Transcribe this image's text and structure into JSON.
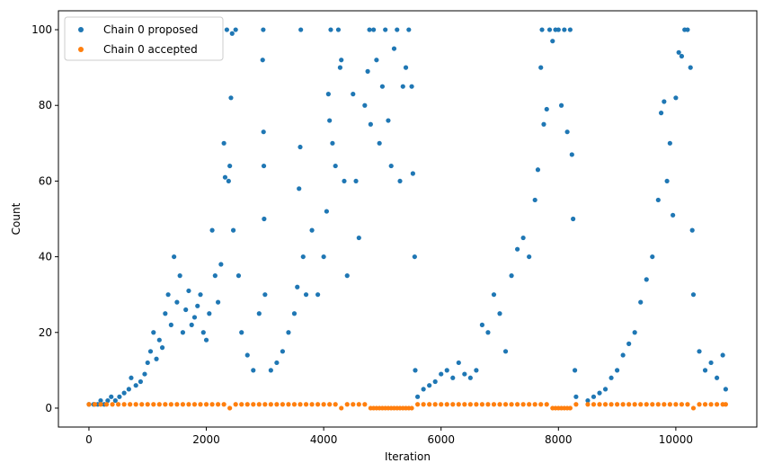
{
  "chart_data": {
    "type": "scatter",
    "title": "",
    "xlabel": "Iteration",
    "ylabel": "Count",
    "xlim": [
      -520,
      11380
    ],
    "ylim": [
      -5,
      105
    ],
    "x_ticks": [
      0,
      2000,
      4000,
      6000,
      8000,
      10000
    ],
    "y_ticks": [
      0,
      20,
      40,
      60,
      80,
      100
    ],
    "grid": false,
    "legend": {
      "position": "top-left"
    },
    "series": [
      {
        "name": "Chain 0 proposed",
        "color": "#1f77b4",
        "description_points": "dense scatter; sampled representative points",
        "points": [
          [
            0,
            1
          ],
          [
            80,
            1
          ],
          [
            150,
            1
          ],
          [
            200,
            2
          ],
          [
            260,
            1
          ],
          [
            320,
            2
          ],
          [
            380,
            3
          ],
          [
            450,
            2
          ],
          [
            520,
            3
          ],
          [
            600,
            4
          ],
          [
            680,
            5
          ],
          [
            720,
            8
          ],
          [
            800,
            6
          ],
          [
            880,
            7
          ],
          [
            950,
            9
          ],
          [
            1000,
            12
          ],
          [
            1050,
            15
          ],
          [
            1100,
            20
          ],
          [
            1150,
            13
          ],
          [
            1200,
            18
          ],
          [
            1250,
            16
          ],
          [
            1300,
            25
          ],
          [
            1350,
            30
          ],
          [
            1400,
            22
          ],
          [
            1450,
            40
          ],
          [
            1500,
            28
          ],
          [
            1550,
            35
          ],
          [
            1600,
            20
          ],
          [
            1650,
            26
          ],
          [
            1700,
            31
          ],
          [
            1750,
            22
          ],
          [
            1800,
            24
          ],
          [
            1850,
            27
          ],
          [
            1900,
            30
          ],
          [
            1950,
            20
          ],
          [
            2000,
            18
          ],
          [
            2050,
            25
          ],
          [
            2100,
            47
          ],
          [
            2150,
            35
          ],
          [
            2200,
            28
          ],
          [
            2250,
            38
          ],
          [
            2300,
            70
          ],
          [
            2320,
            61
          ],
          [
            2350,
            100
          ],
          [
            2380,
            60
          ],
          [
            2400,
            64
          ],
          [
            2420,
            82
          ],
          [
            2440,
            99
          ],
          [
            2460,
            47
          ],
          [
            2500,
            100
          ],
          [
            2550,
            35
          ],
          [
            2600,
            20
          ],
          [
            2700,
            14
          ],
          [
            2800,
            10
          ],
          [
            2900,
            25
          ],
          [
            2960,
            92
          ],
          [
            2970,
            100
          ],
          [
            2975,
            73
          ],
          [
            2980,
            64
          ],
          [
            2985,
            50
          ],
          [
            3000,
            30
          ],
          [
            3100,
            10
          ],
          [
            3200,
            12
          ],
          [
            3300,
            15
          ],
          [
            3400,
            20
          ],
          [
            3500,
            25
          ],
          [
            3550,
            32
          ],
          [
            3580,
            58
          ],
          [
            3600,
            69
          ],
          [
            3610,
            100
          ],
          [
            3650,
            40
          ],
          [
            3700,
            30
          ],
          [
            3800,
            47
          ],
          [
            3900,
            30
          ],
          [
            4000,
            40
          ],
          [
            4050,
            52
          ],
          [
            4080,
            83
          ],
          [
            4100,
            76
          ],
          [
            4120,
            100
          ],
          [
            4150,
            70
          ],
          [
            4200,
            64
          ],
          [
            4250,
            100
          ],
          [
            4280,
            90
          ],
          [
            4300,
            92
          ],
          [
            4350,
            60
          ],
          [
            4400,
            35
          ],
          [
            4500,
            83
          ],
          [
            4550,
            60
          ],
          [
            4600,
            45
          ],
          [
            4700,
            80
          ],
          [
            4750,
            89
          ],
          [
            4780,
            100
          ],
          [
            4800,
            75
          ],
          [
            4850,
            100
          ],
          [
            4900,
            92
          ],
          [
            4950,
            70
          ],
          [
            5000,
            85
          ],
          [
            5050,
            100
          ],
          [
            5100,
            76
          ],
          [
            5150,
            64
          ],
          [
            5200,
            95
          ],
          [
            5250,
            100
          ],
          [
            5300,
            60
          ],
          [
            5350,
            85
          ],
          [
            5400,
            90
          ],
          [
            5450,
            100
          ],
          [
            5500,
            85
          ],
          [
            5520,
            62
          ],
          [
            5550,
            40
          ],
          [
            5560,
            10
          ],
          [
            5600,
            3
          ],
          [
            5700,
            5
          ],
          [
            5800,
            6
          ],
          [
            5900,
            7
          ],
          [
            6000,
            9
          ],
          [
            6100,
            10
          ],
          [
            6200,
            8
          ],
          [
            6300,
            12
          ],
          [
            6400,
            9
          ],
          [
            6500,
            8
          ],
          [
            6600,
            10
          ],
          [
            6700,
            22
          ],
          [
            6800,
            20
          ],
          [
            6900,
            30
          ],
          [
            7000,
            25
          ],
          [
            7100,
            15
          ],
          [
            7200,
            35
          ],
          [
            7300,
            42
          ],
          [
            7400,
            45
          ],
          [
            7500,
            40
          ],
          [
            7600,
            55
          ],
          [
            7650,
            63
          ],
          [
            7700,
            90
          ],
          [
            7720,
            100
          ],
          [
            7750,
            75
          ],
          [
            7800,
            79
          ],
          [
            7850,
            100
          ],
          [
            7900,
            97
          ],
          [
            7950,
            100
          ],
          [
            8000,
            100
          ],
          [
            8050,
            80
          ],
          [
            8100,
            100
          ],
          [
            8150,
            73
          ],
          [
            8200,
            100
          ],
          [
            8230,
            67
          ],
          [
            8250,
            50
          ],
          [
            8280,
            10
          ],
          [
            8300,
            3
          ],
          [
            8500,
            2
          ],
          [
            8600,
            3
          ],
          [
            8700,
            4
          ],
          [
            8800,
            5
          ],
          [
            8900,
            8
          ],
          [
            9000,
            10
          ],
          [
            9100,
            14
          ],
          [
            9200,
            17
          ],
          [
            9300,
            20
          ],
          [
            9400,
            28
          ],
          [
            9500,
            34
          ],
          [
            9600,
            40
          ],
          [
            9700,
            55
          ],
          [
            9750,
            78
          ],
          [
            9800,
            81
          ],
          [
            9850,
            60
          ],
          [
            9900,
            70
          ],
          [
            9950,
            51
          ],
          [
            10000,
            82
          ],
          [
            10050,
            94
          ],
          [
            10100,
            93
          ],
          [
            10150,
            100
          ],
          [
            10200,
            100
          ],
          [
            10250,
            90
          ],
          [
            10280,
            47
          ],
          [
            10300,
            30
          ],
          [
            10400,
            15
          ],
          [
            10500,
            10
          ],
          [
            10600,
            12
          ],
          [
            10700,
            8
          ],
          [
            10800,
            14
          ],
          [
            10850,
            5
          ]
        ]
      },
      {
        "name": "Chain 0 accepted",
        "color": "#ff7f0e",
        "description_points": "nearly all at value 1",
        "points": [
          [
            0,
            1
          ],
          [
            100,
            1
          ],
          [
            200,
            1
          ],
          [
            300,
            1
          ],
          [
            400,
            1
          ],
          [
            500,
            1
          ],
          [
            600,
            1
          ],
          [
            700,
            1
          ],
          [
            800,
            1
          ],
          [
            900,
            1
          ],
          [
            1000,
            1
          ],
          [
            1100,
            1
          ],
          [
            1200,
            1
          ],
          [
            1300,
            1
          ],
          [
            1400,
            1
          ],
          [
            1500,
            1
          ],
          [
            1600,
            1
          ],
          [
            1700,
            1
          ],
          [
            1800,
            1
          ],
          [
            1900,
            1
          ],
          [
            2000,
            1
          ],
          [
            2100,
            1
          ],
          [
            2200,
            1
          ],
          [
            2300,
            1
          ],
          [
            2400,
            0
          ],
          [
            2500,
            1
          ],
          [
            2600,
            1
          ],
          [
            2700,
            1
          ],
          [
            2800,
            1
          ],
          [
            2900,
            1
          ],
          [
            3000,
            1
          ],
          [
            3100,
            1
          ],
          [
            3200,
            1
          ],
          [
            3300,
            1
          ],
          [
            3400,
            1
          ],
          [
            3500,
            1
          ],
          [
            3600,
            1
          ],
          [
            3700,
            1
          ],
          [
            3800,
            1
          ],
          [
            3900,
            1
          ],
          [
            4000,
            1
          ],
          [
            4100,
            1
          ],
          [
            4200,
            1
          ],
          [
            4300,
            0
          ],
          [
            4400,
            1
          ],
          [
            4500,
            1
          ],
          [
            4600,
            1
          ],
          [
            4700,
            1
          ],
          [
            4800,
            0
          ],
          [
            4850,
            0
          ],
          [
            4900,
            0
          ],
          [
            4950,
            0
          ],
          [
            5000,
            0
          ],
          [
            5050,
            0
          ],
          [
            5100,
            0
          ],
          [
            5150,
            0
          ],
          [
            5200,
            0
          ],
          [
            5250,
            0
          ],
          [
            5300,
            0
          ],
          [
            5350,
            0
          ],
          [
            5400,
            0
          ],
          [
            5450,
            0
          ],
          [
            5500,
            0
          ],
          [
            5600,
            1
          ],
          [
            5700,
            1
          ],
          [
            5800,
            1
          ],
          [
            5900,
            1
          ],
          [
            6000,
            1
          ],
          [
            6100,
            1
          ],
          [
            6200,
            1
          ],
          [
            6300,
            1
          ],
          [
            6400,
            1
          ],
          [
            6500,
            1
          ],
          [
            6600,
            1
          ],
          [
            6700,
            1
          ],
          [
            6800,
            1
          ],
          [
            6900,
            1
          ],
          [
            7000,
            1
          ],
          [
            7100,
            1
          ],
          [
            7200,
            1
          ],
          [
            7300,
            1
          ],
          [
            7400,
            1
          ],
          [
            7500,
            1
          ],
          [
            7600,
            1
          ],
          [
            7700,
            1
          ],
          [
            7800,
            1
          ],
          [
            7900,
            0
          ],
          [
            7950,
            0
          ],
          [
            8000,
            0
          ],
          [
            8050,
            0
          ],
          [
            8100,
            0
          ],
          [
            8150,
            0
          ],
          [
            8200,
            0
          ],
          [
            8300,
            1
          ],
          [
            8500,
            1
          ],
          [
            8600,
            1
          ],
          [
            8700,
            1
          ],
          [
            8800,
            1
          ],
          [
            8900,
            1
          ],
          [
            9000,
            1
          ],
          [
            9100,
            1
          ],
          [
            9200,
            1
          ],
          [
            9300,
            1
          ],
          [
            9400,
            1
          ],
          [
            9500,
            1
          ],
          [
            9600,
            1
          ],
          [
            9700,
            1
          ],
          [
            9800,
            1
          ],
          [
            9900,
            1
          ],
          [
            10000,
            1
          ],
          [
            10100,
            1
          ],
          [
            10200,
            1
          ],
          [
            10300,
            0
          ],
          [
            10400,
            1
          ],
          [
            10500,
            1
          ],
          [
            10600,
            1
          ],
          [
            10700,
            1
          ],
          [
            10800,
            1
          ],
          [
            10850,
            1
          ]
        ]
      }
    ]
  }
}
